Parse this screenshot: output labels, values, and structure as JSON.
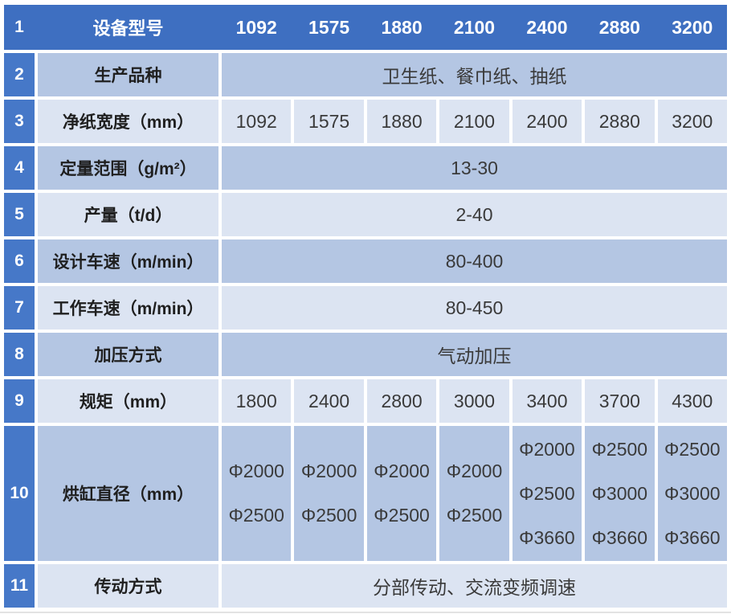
{
  "table": {
    "header_row": {
      "no": "1",
      "label": "设备型号",
      "values": [
        "1092",
        "1575",
        "1880",
        "2100",
        "2400",
        "2880",
        "3200"
      ]
    },
    "rows": [
      {
        "no": "2",
        "label": "生产品种",
        "span": "卫生纸、餐巾纸、抽纸"
      },
      {
        "no": "3",
        "label": "净纸宽度（mm）",
        "values": [
          "1092",
          "1575",
          "1880",
          "2100",
          "2400",
          "2880",
          "3200"
        ]
      },
      {
        "no": "4",
        "label": "定量范围（g/m²）",
        "span": "13-30"
      },
      {
        "no": "5",
        "label": "产量（t/d）",
        "span": "2-40"
      },
      {
        "no": "6",
        "label": "设计车速（m/min）",
        "span": "80-400"
      },
      {
        "no": "7",
        "label": "工作车速（m/min）",
        "span": "80-450"
      },
      {
        "no": "8",
        "label": "加压方式",
        "span": "气动加压"
      },
      {
        "no": "9",
        "label": "规矩（mm）",
        "values": [
          "1800",
          "2400",
          "2800",
          "3000",
          "3400",
          "3700",
          "4300"
        ]
      },
      {
        "no": "10",
        "label": "烘缸直径（mm）",
        "values": [
          [
            "Φ2000",
            "Φ2500"
          ],
          [
            "Φ2000",
            "Φ2500"
          ],
          [
            "Φ2000",
            "Φ2500"
          ],
          [
            "Φ2000",
            "Φ2500"
          ],
          [
            "Φ2000",
            "Φ2500",
            "Φ3660"
          ],
          [
            "Φ2500",
            "Φ3000",
            "Φ3660"
          ],
          [
            "Φ2500",
            "Φ3000",
            "Φ3660"
          ]
        ]
      },
      {
        "no": "11",
        "label": "传动方式",
        "span": "分部传动、交流变频调速"
      }
    ],
    "colors": {
      "header_bg": "#3e6fc1",
      "index_bg": "#4678c8",
      "row_light": "#dce4f2",
      "row_dark": "#b4c6e3",
      "text_dark": "#3a3a3a",
      "text_white": "#ffffff"
    }
  }
}
